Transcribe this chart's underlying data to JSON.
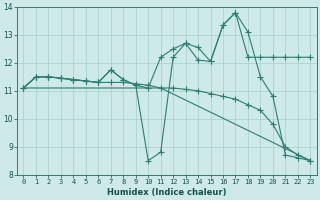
{
  "xlabel": "Humidex (Indice chaleur)",
  "xlim": [
    -0.5,
    23.5
  ],
  "ylim": [
    8,
    14
  ],
  "yticks": [
    8,
    9,
    10,
    11,
    12,
    13,
    14
  ],
  "xticks": [
    0,
    1,
    2,
    3,
    4,
    5,
    6,
    7,
    8,
    9,
    10,
    11,
    12,
    13,
    14,
    15,
    16,
    17,
    18,
    19,
    20,
    21,
    22,
    23
  ],
  "bg_color": "#cde9e8",
  "line_color": "#2e7d72",
  "grid_color": "#a8cfcc",
  "lines": [
    {
      "x": [
        0,
        1,
        2,
        3,
        4,
        5,
        6,
        7,
        8,
        9,
        10,
        11,
        12,
        13,
        14,
        15,
        16,
        17,
        18,
        19,
        20,
        21,
        22,
        23
      ],
      "y": [
        11.1,
        11.5,
        11.5,
        11.45,
        11.4,
        11.35,
        11.3,
        11.3,
        11.3,
        11.25,
        11.2,
        11.1,
        11.1,
        11.05,
        11.0,
        10.9,
        10.8,
        10.7,
        10.5,
        10.3,
        9.8,
        9.0,
        8.7,
        8.5
      ],
      "marker": "+",
      "markersize": 4,
      "linestyle": "-",
      "linewidth": 0.8
    },
    {
      "x": [
        0,
        1,
        2,
        3,
        4,
        5,
        6,
        7,
        8,
        9,
        10,
        11,
        12,
        13,
        14,
        15,
        16,
        17,
        18,
        19,
        20,
        21,
        22,
        23
      ],
      "y": [
        11.1,
        11.5,
        11.5,
        11.45,
        11.4,
        11.35,
        11.3,
        11.75,
        11.4,
        11.2,
        11.1,
        12.2,
        12.5,
        12.7,
        12.1,
        12.05,
        13.35,
        13.8,
        12.2,
        12.2,
        12.2,
        12.2,
        12.2,
        12.2
      ],
      "marker": "+",
      "markersize": 4,
      "linestyle": "-",
      "linewidth": 0.8
    },
    {
      "x": [
        0,
        1,
        2,
        3,
        4,
        5,
        6,
        7,
        8,
        9,
        10,
        11,
        12,
        13,
        14,
        15,
        16,
        17,
        18,
        19,
        20,
        21,
        22,
        23
      ],
      "y": [
        11.1,
        11.5,
        11.5,
        11.45,
        11.4,
        11.35,
        11.3,
        11.75,
        11.4,
        11.2,
        8.5,
        8.8,
        12.2,
        12.7,
        12.55,
        12.05,
        13.35,
        13.8,
        13.1,
        11.5,
        10.8,
        8.7,
        8.6,
        8.5
      ],
      "marker": "+",
      "markersize": 4,
      "linestyle": "-",
      "linewidth": 0.8
    },
    {
      "x": [
        0,
        10,
        11,
        23
      ],
      "y": [
        11.1,
        11.1,
        11.1,
        8.5
      ],
      "marker": "None",
      "markersize": 0,
      "linestyle": "-",
      "linewidth": 0.8
    }
  ]
}
